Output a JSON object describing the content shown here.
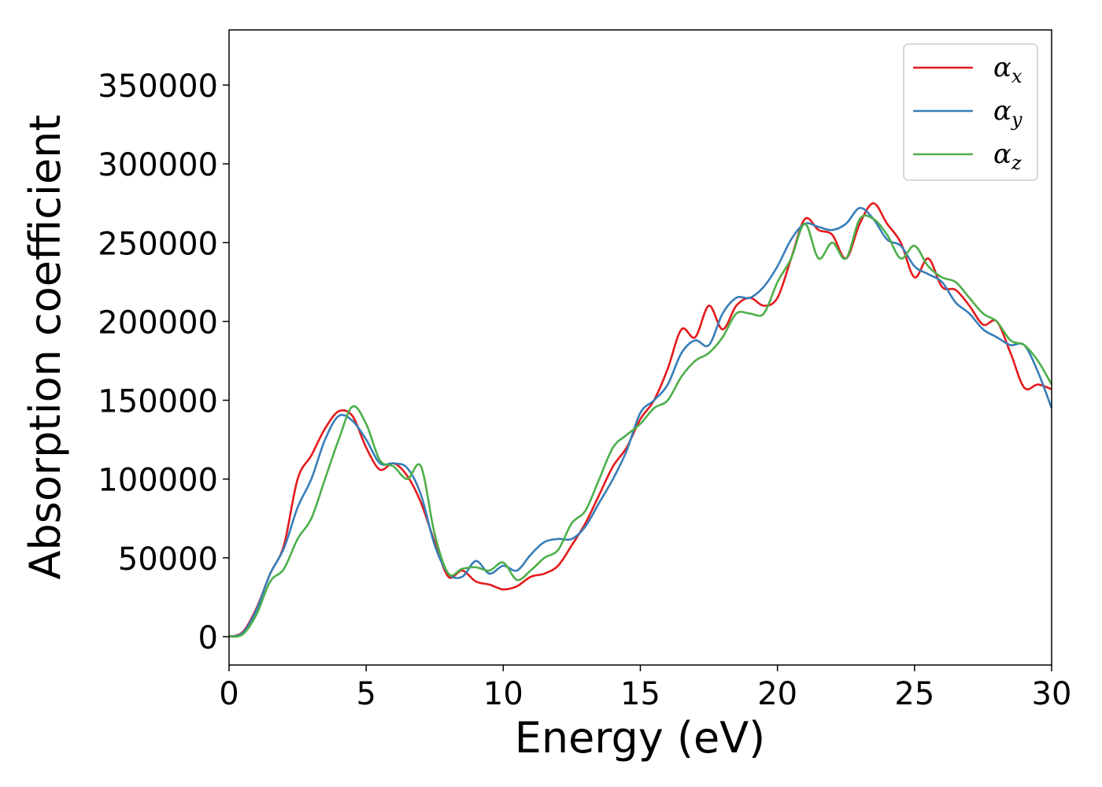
{
  "chart_data": {
    "type": "line",
    "title": "",
    "xlabel": "Energy (eV)",
    "ylabel": "Absorption coefficient",
    "xlim": [
      0,
      30
    ],
    "ylim": [
      -18000,
      385000
    ],
    "xticks": [
      "0",
      "5",
      "10",
      "15",
      "20",
      "25",
      "30"
    ],
    "yticks": [
      "0",
      "50000",
      "100000",
      "150000",
      "200000",
      "250000",
      "300000",
      "350000"
    ],
    "grid": false,
    "legend_position": "top-right",
    "x": [
      0,
      0.5,
      1,
      1.5,
      2,
      2.5,
      3,
      3.5,
      4,
      4.5,
      5,
      5.5,
      6,
      6.5,
      7,
      7.5,
      8,
      8.5,
      9,
      9.5,
      10,
      10.5,
      11,
      11.5,
      12,
      12.5,
      13,
      13.5,
      14,
      14.5,
      15,
      15.5,
      16,
      16.5,
      17,
      17.5,
      18,
      18.5,
      19,
      19.5,
      20,
      20.5,
      21,
      21.5,
      22,
      22.5,
      23,
      23.5,
      24,
      24.5,
      25,
      25.5,
      26,
      26.5,
      27,
      27.5,
      28,
      28.5,
      29,
      29.5,
      30
    ],
    "series": [
      {
        "name": "α",
        "subscript": "x",
        "color": "#e41a1c",
        "values": [
          0,
          3000,
          18000,
          40000,
          58000,
          100000,
          115000,
          132000,
          143000,
          140000,
          120000,
          106000,
          110000,
          102000,
          85000,
          60000,
          38000,
          42000,
          35000,
          33000,
          30000,
          32000,
          38000,
          40000,
          45000,
          58000,
          72000,
          90000,
          108000,
          120000,
          138000,
          150000,
          170000,
          195000,
          190000,
          210000,
          195000,
          210000,
          215000,
          210000,
          215000,
          240000,
          265000,
          258000,
          255000,
          240000,
          262000,
          275000,
          262000,
          250000,
          228000,
          240000,
          222000,
          220000,
          210000,
          198000,
          200000,
          180000,
          158000,
          160000,
          157000
        ]
      },
      {
        "name": "α",
        "subscript": "y",
        "color": "#377eb8",
        "values": [
          0,
          2500,
          17000,
          40000,
          56000,
          82000,
          100000,
          125000,
          140000,
          137000,
          125000,
          110000,
          110000,
          107000,
          90000,
          58000,
          40000,
          38000,
          48000,
          40000,
          45000,
          42000,
          52000,
          60000,
          62000,
          62000,
          70000,
          85000,
          100000,
          118000,
          142000,
          150000,
          160000,
          180000,
          188000,
          185000,
          205000,
          215000,
          215000,
          222000,
          235000,
          252000,
          262000,
          260000,
          258000,
          262000,
          272000,
          265000,
          252000,
          248000,
          235000,
          230000,
          225000,
          212000,
          205000,
          195000,
          190000,
          185000,
          185000,
          168000,
          145000
        ]
      },
      {
        "name": "α",
        "subscript": "z",
        "color": "#4daf4a",
        "values": [
          0,
          1500,
          14000,
          35000,
          43000,
          62000,
          75000,
          100000,
          125000,
          146000,
          135000,
          112000,
          108000,
          100000,
          108000,
          65000,
          40000,
          43000,
          44000,
          42000,
          47000,
          36000,
          42000,
          50000,
          55000,
          72000,
          80000,
          100000,
          120000,
          128000,
          135000,
          145000,
          150000,
          165000,
          175000,
          180000,
          190000,
          205000,
          205000,
          205000,
          225000,
          240000,
          262000,
          240000,
          250000,
          240000,
          265000,
          265000,
          255000,
          240000,
          248000,
          235000,
          228000,
          225000,
          215000,
          205000,
          200000,
          188000,
          185000,
          175000,
          160000
        ]
      }
    ]
  }
}
